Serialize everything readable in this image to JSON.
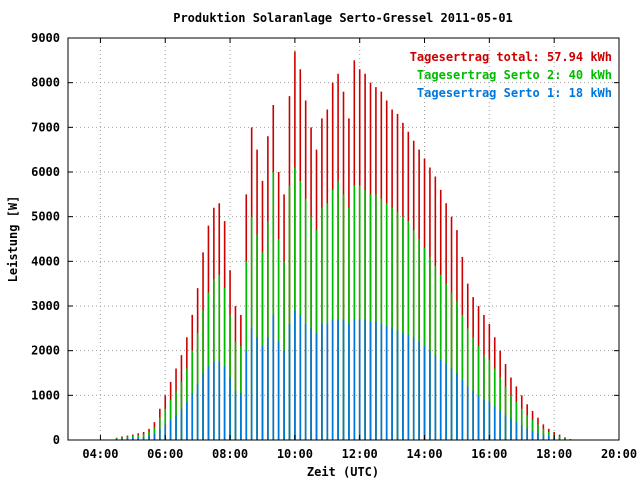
{
  "chart_data": {
    "type": "bar",
    "title": "Produktion Solaranlage Serto-Gressel 2011-05-01",
    "xlabel": "Zeit (UTC)",
    "ylabel": "Leistung [W]",
    "xlim": [
      "03:00",
      "20:00"
    ],
    "ylim": [
      0,
      9000
    ],
    "x_ticks": [
      "04:00",
      "06:00",
      "08:00",
      "10:00",
      "12:00",
      "14:00",
      "16:00",
      "18:00",
      "20:00"
    ],
    "y_ticks": [
      0,
      1000,
      2000,
      3000,
      4000,
      5000,
      6000,
      7000,
      8000,
      9000
    ],
    "grid": true,
    "legend_position": "top-right",
    "legend": [
      "Tagesertrag total: 57.94 kWh",
      "Tagesertrag Serto 2: 40 kWh",
      "Tagesertrag Serto 1: 18 kWh"
    ],
    "colors": {
      "total": "#cc0000",
      "serto2": "#00bb00",
      "serto1": "#0077dd"
    },
    "x": [
      "04:30",
      "04:40",
      "04:50",
      "05:00",
      "05:10",
      "05:20",
      "05:30",
      "05:40",
      "05:50",
      "06:00",
      "06:10",
      "06:20",
      "06:30",
      "06:40",
      "06:50",
      "07:00",
      "07:10",
      "07:20",
      "07:30",
      "07:40",
      "07:50",
      "08:00",
      "08:10",
      "08:20",
      "08:30",
      "08:40",
      "08:50",
      "09:00",
      "09:10",
      "09:20",
      "09:30",
      "09:40",
      "09:50",
      "10:00",
      "10:10",
      "10:20",
      "10:30",
      "10:40",
      "10:50",
      "11:00",
      "11:10",
      "11:20",
      "11:30",
      "11:40",
      "11:50",
      "12:00",
      "12:10",
      "12:20",
      "12:30",
      "12:40",
      "12:50",
      "13:00",
      "13:10",
      "13:20",
      "13:30",
      "13:40",
      "13:50",
      "14:00",
      "14:10",
      "14:20",
      "14:30",
      "14:40",
      "14:50",
      "15:00",
      "15:10",
      "15:20",
      "15:30",
      "15:40",
      "15:50",
      "16:00",
      "16:10",
      "16:20",
      "16:30",
      "16:40",
      "16:50",
      "17:00",
      "17:10",
      "17:20",
      "17:30",
      "17:40",
      "17:50",
      "18:00",
      "18:10",
      "18:20",
      "18:30"
    ],
    "series": [
      {
        "name": "Tagesertrag total: 57.94 kWh",
        "values": [
          50,
          80,
          100,
          120,
          150,
          180,
          250,
          400,
          700,
          1000,
          1300,
          1600,
          1900,
          2300,
          2800,
          3400,
          4200,
          4800,
          5200,
          5300,
          4900,
          3800,
          3000,
          2800,
          5500,
          7000,
          6500,
          5800,
          6800,
          7500,
          6000,
          5500,
          7700,
          8700,
          8300,
          7600,
          7000,
          6500,
          7200,
          7400,
          8000,
          8200,
          7800,
          7200,
          8500,
          8300,
          8200,
          8000,
          7900,
          7800,
          7600,
          7400,
          7300,
          7100,
          6900,
          6700,
          6500,
          6300,
          6100,
          5900,
          5600,
          5300,
          5000,
          4700,
          4100,
          3500,
          3200,
          3000,
          2800,
          2600,
          2300,
          2000,
          1700,
          1400,
          1200,
          1000,
          800,
          650,
          500,
          350,
          250,
          180,
          120,
          60,
          20
        ]
      },
      {
        "name": "Tagesertrag Serto 2: 40 kWh",
        "values": [
          40,
          60,
          80,
          90,
          110,
          130,
          180,
          280,
          500,
          700,
          900,
          1100,
          1300,
          1600,
          2000,
          2400,
          2900,
          3300,
          3600,
          3700,
          3400,
          2800,
          2200,
          2100,
          4000,
          5000,
          4600,
          4200,
          4900,
          6000,
          4500,
          4000,
          5700,
          6100,
          5800,
          5400,
          5000,
          4700,
          5200,
          5300,
          5600,
          5800,
          5500,
          5200,
          5700,
          5700,
          5600,
          5500,
          5500,
          5400,
          5300,
          5200,
          5100,
          5000,
          4900,
          4700,
          4500,
          4300,
          4100,
          3900,
          3700,
          3500,
          3300,
          3100,
          2800,
          2500,
          2300,
          2100,
          1900,
          1800,
          1600,
          1400,
          1200,
          1000,
          850,
          700,
          550,
          450,
          350,
          250,
          180,
          120,
          80,
          40,
          15
        ]
      },
      {
        "name": "Tagesertrag Serto 1: 18 kWh",
        "values": [
          20,
          30,
          40,
          45,
          55,
          65,
          90,
          140,
          250,
          350,
          450,
          550,
          700,
          850,
          1050,
          1250,
          1500,
          1650,
          1750,
          1750,
          1650,
          1400,
          1100,
          1050,
          2000,
          2500,
          2300,
          2100,
          2300,
          2800,
          2200,
          2000,
          2600,
          2900,
          2800,
          2600,
          2500,
          2400,
          2600,
          2600,
          2700,
          2700,
          2700,
          2600,
          2700,
          2700,
          2700,
          2650,
          2650,
          2600,
          2550,
          2500,
          2450,
          2400,
          2350,
          2300,
          2200,
          2100,
          2000,
          1900,
          1800,
          1700,
          1600,
          1500,
          1350,
          1200,
          1100,
          1000,
          900,
          850,
          750,
          650,
          550,
          480,
          400,
          330,
          260,
          210,
          160,
          120,
          90,
          60,
          40,
          20,
          8
        ]
      }
    ]
  }
}
